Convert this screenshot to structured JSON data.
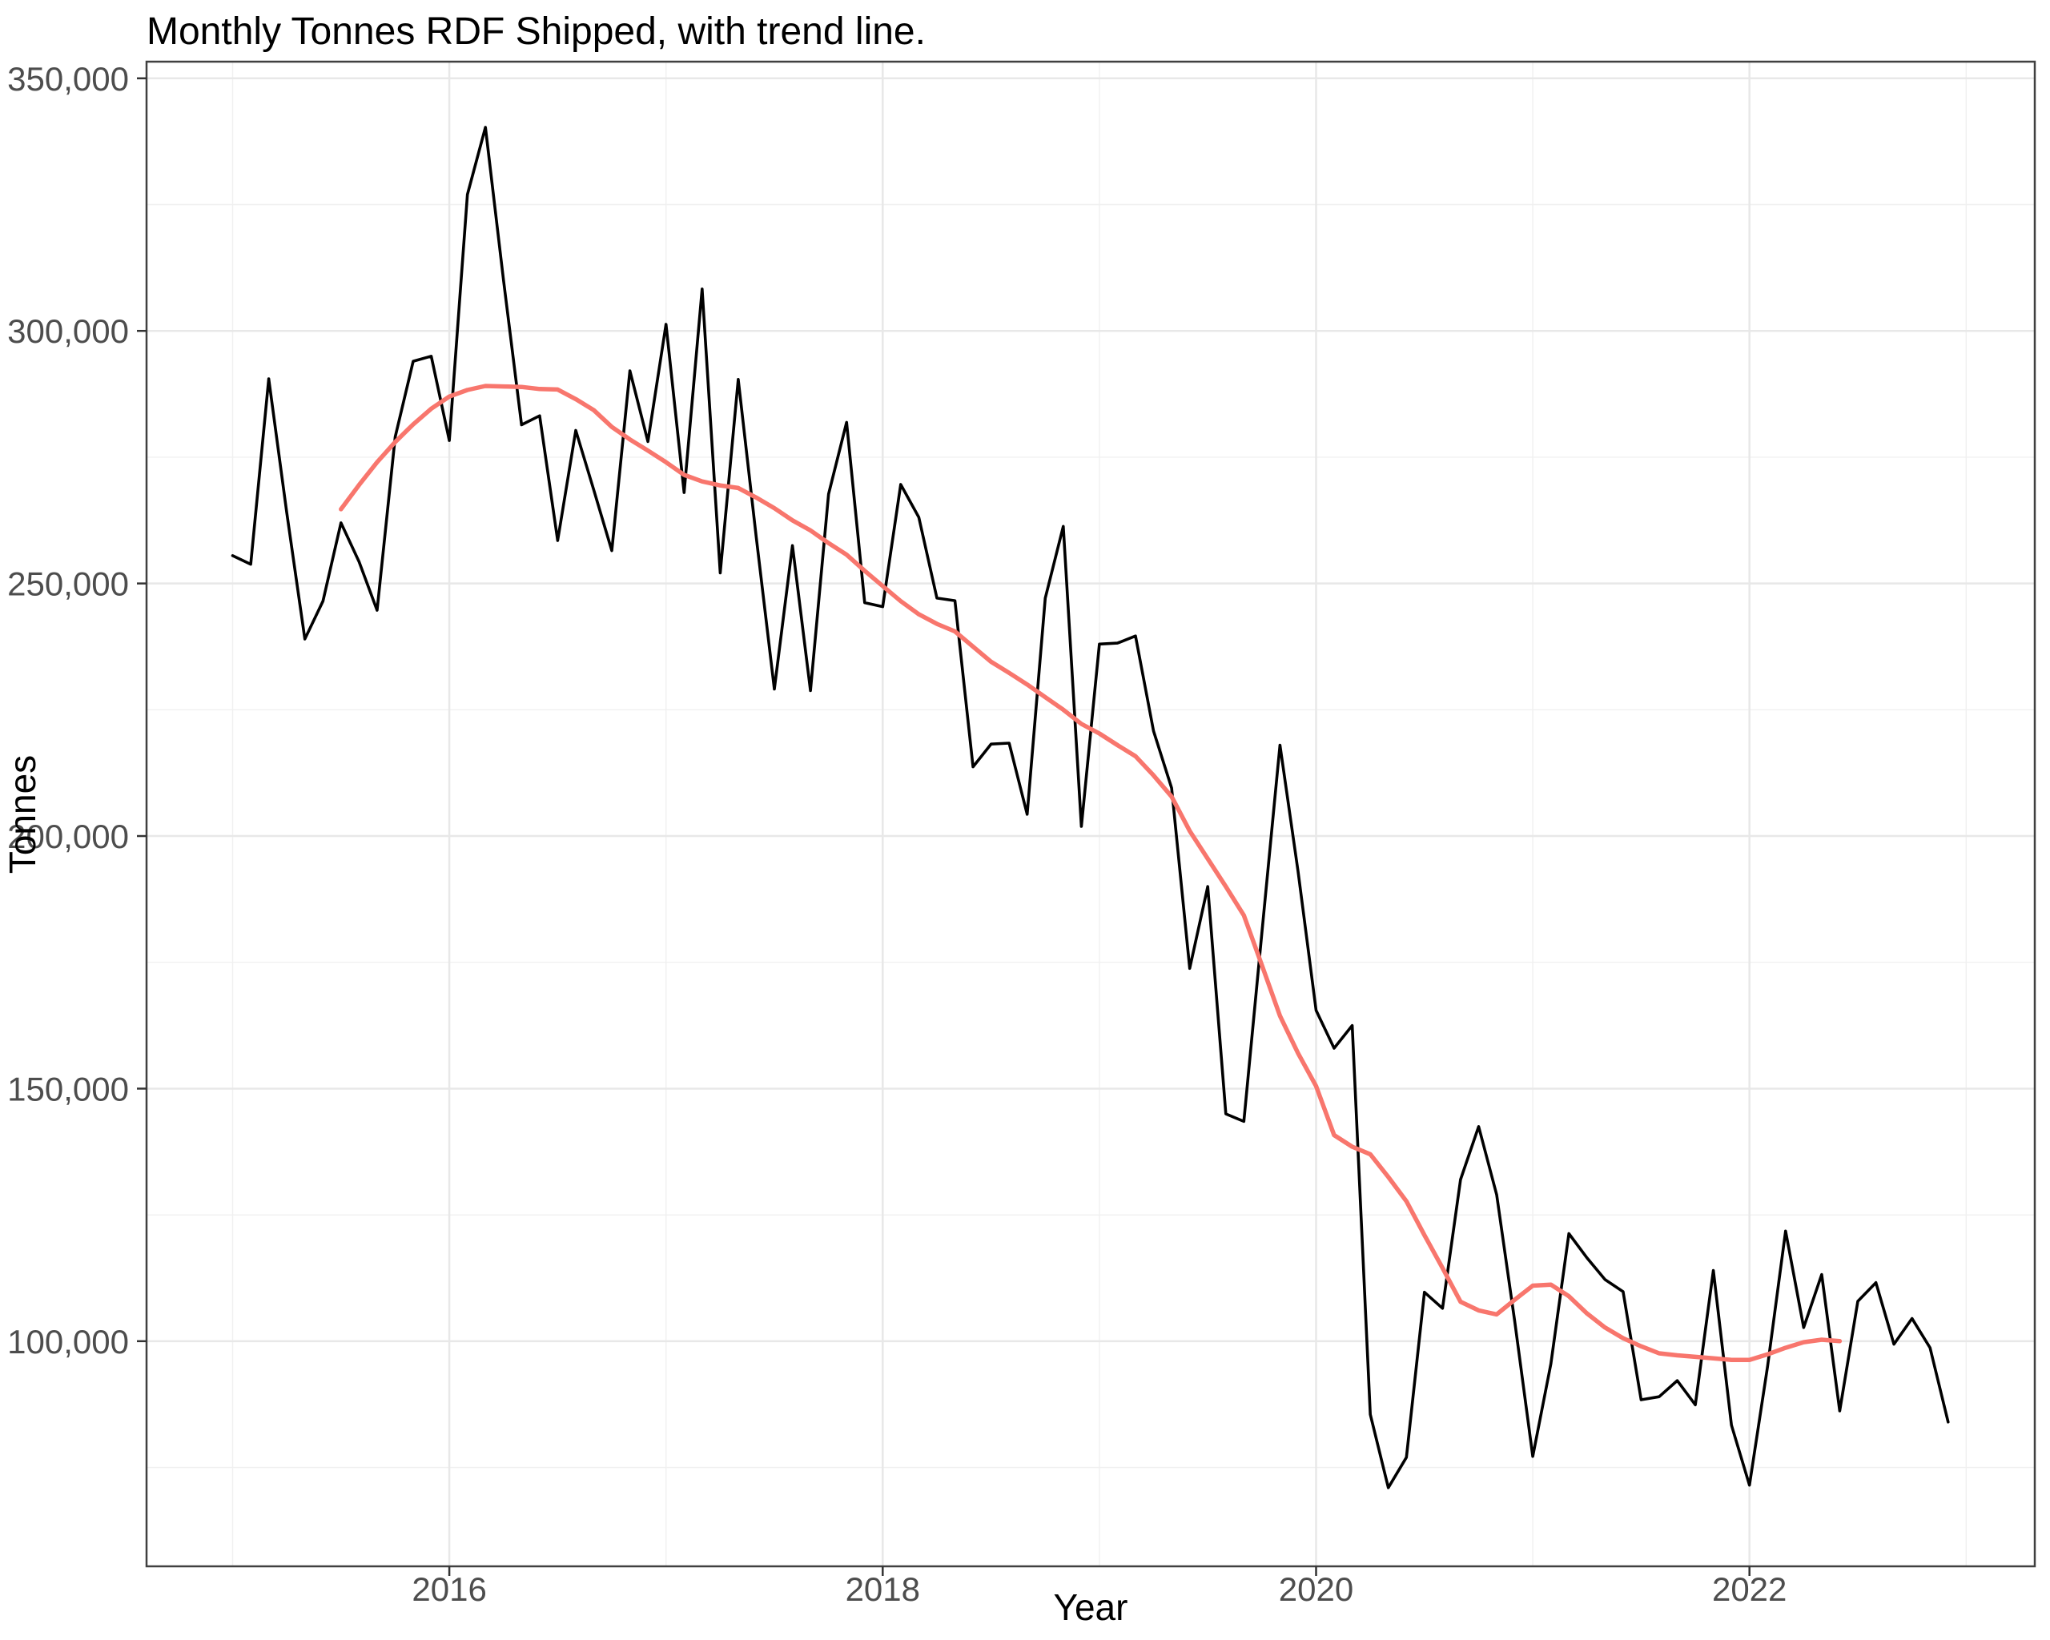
{
  "chart_data": {
    "type": "line",
    "title": "Monthly Tonnes RDF Shipped, with trend line.",
    "xlabel": "Year",
    "ylabel": "Tonnes",
    "frequency": "monthly",
    "x_range": {
      "start": "2015-01",
      "end": "2022-12"
    },
    "x_tick_years": [
      2016,
      2018,
      2020,
      2022
    ],
    "x_tick_labels": [
      "2016",
      "2018",
      "2020",
      "2022"
    ],
    "x_minor_years": [
      2015,
      2017,
      2019,
      2021,
      2023
    ],
    "y_ticks": [
      100000,
      150000,
      200000,
      250000,
      300000,
      350000
    ],
    "y_tick_labels": [
      "100,000",
      "150,000",
      "200,000",
      "250,000",
      "300,000",
      "350,000"
    ],
    "y_minor_ticks": [
      75000,
      125000,
      175000,
      225000,
      275000,
      325000
    ],
    "ylim": [
      55000,
      353600
    ],
    "grid": true,
    "legend_position": "none",
    "series": [
      {
        "name": "monthly-tonnes",
        "color": "#000000",
        "start_month": "2015-01",
        "values": [
          255500,
          253800,
          290500,
          264000,
          239000,
          246500,
          262000,
          254300,
          244700,
          279000,
          294000,
          295000,
          278300,
          327000,
          340300,
          310000,
          281400,
          283200,
          258500,
          280300,
          268500,
          256500,
          292100,
          278100,
          301300,
          268000,
          308300,
          252100,
          290400,
          259000,
          229100,
          257500,
          228800,
          267700,
          281900,
          246200,
          245400,
          269600,
          263100,
          247100,
          246600,
          213700,
          218200,
          218400,
          204300,
          247100,
          261300,
          201900,
          238000,
          238200,
          239600,
          220800,
          209500,
          173800,
          190000,
          145000,
          143500,
          181000,
          218000,
          193000,
          165500,
          158000,
          162500,
          85500,
          71000,
          77000,
          109700,
          106500,
          132000,
          142500,
          129000,
          104000,
          77200,
          95500,
          121300,
          116500,
          112200,
          109800,
          88400,
          89000,
          92200,
          87400,
          114000,
          83400,
          71500,
          95000,
          121800,
          102700,
          113200,
          86200,
          107900,
          111600,
          99400,
          104500,
          98700,
          84000
        ]
      },
      {
        "name": "trend-12-month-moving-average",
        "color": "#F8766D",
        "start_month": "2015-07",
        "values": [
          264700,
          269500,
          274000,
          278000,
          281500,
          284600,
          287000,
          288300,
          289100,
          289000,
          288900,
          288500,
          288400,
          286500,
          284300,
          281000,
          278500,
          276300,
          274000,
          271500,
          270200,
          269400,
          268900,
          267000,
          264900,
          262500,
          260500,
          258000,
          255700,
          252500,
          249500,
          246500,
          243900,
          242000,
          240500,
          237500,
          234500,
          232300,
          230000,
          227500,
          225000,
          222200,
          220300,
          218000,
          215800,
          212000,
          207800,
          201000,
          195500,
          190000,
          184300,
          174400,
          164400,
          157000,
          150500,
          140800,
          138500,
          137000,
          132500,
          127700,
          121000,
          114500,
          107800,
          106100,
          105300,
          108200,
          111000,
          111200,
          108900,
          105500,
          102700,
          100600,
          99000,
          97600,
          97200,
          96900,
          96600,
          96300,
          96300,
          97400,
          98700,
          99800,
          100300,
          100000
        ]
      }
    ],
    "colors": {
      "background": "#FFFFFF",
      "panel_background": "#FFFFFF",
      "panel_border": "#404040",
      "grid_major": "#E8E8E8",
      "grid_minor": "#F0F0F0",
      "tick_mark": "#333333",
      "tick_label": "#4D4D4D",
      "title_text": "#000000",
      "monthly_line": "#000000",
      "trend_line": "#F8766D"
    }
  }
}
